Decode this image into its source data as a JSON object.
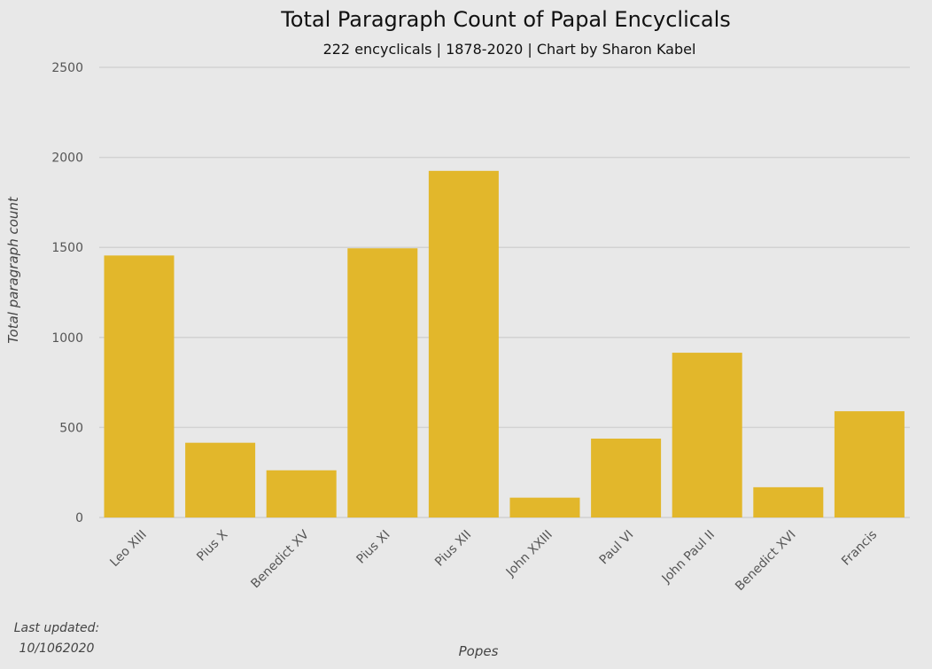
{
  "chart_data": {
    "type": "bar",
    "title": "Total Paragraph Count of Papal Encyclicals",
    "subtitle": "222 encyclicals | 1878-2020 | Chart by Sharon Kabel",
    "xlabel": "Popes",
    "ylabel": "Total paragraph count",
    "categories": [
      "Leo XIII",
      "Pius X",
      "Benedict XV",
      "Pius XI",
      "Pius XII",
      "John XXIII",
      "Paul VI",
      "John Paul II",
      "Benedict XVI",
      "Francis"
    ],
    "values": [
      1455,
      415,
      262,
      1495,
      1925,
      110,
      438,
      915,
      168,
      590
    ],
    "ylim": [
      0,
      2500
    ],
    "yticks": [
      "0",
      "500",
      "1000",
      "1500",
      "2000",
      "2500"
    ],
    "grid": true,
    "legend": "none",
    "bar_color": "#e2b72b"
  },
  "footer": {
    "last_updated_label": "Last updated:",
    "last_updated_value": "10/1062020"
  }
}
